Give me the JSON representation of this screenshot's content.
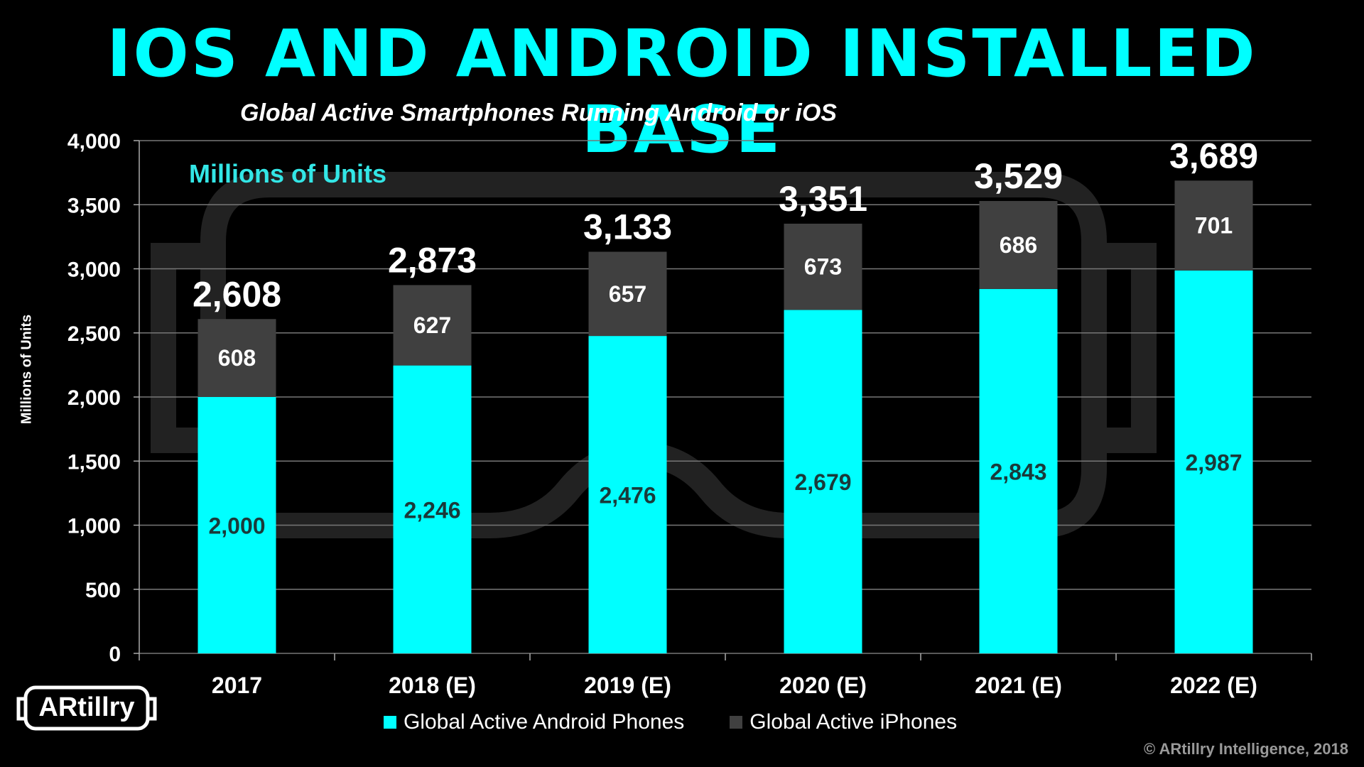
{
  "title": "IOS AND ANDROID INSTALLED BASE",
  "subtitle": "Global Active Smartphones Running Android or iOS",
  "units_note": "Millions of Units",
  "copyright": "© ARtillry Intelligence, 2018",
  "logo_text": "ARtillry",
  "colors": {
    "android": "#00ffff",
    "iphone": "#404040",
    "grid": "#777777",
    "accent": "#00ffff"
  },
  "chart_data": {
    "type": "bar",
    "stacked": true,
    "categories": [
      "2017",
      "2018 (E)",
      "2019 (E)",
      "2020 (E)",
      "2021 (E)",
      "2022 (E)"
    ],
    "series": [
      {
        "name": "Global Active Android Phones",
        "values": [
          2000,
          2246,
          2476,
          2679,
          2843,
          2987
        ]
      },
      {
        "name": "Global Active iPhones",
        "values": [
          608,
          627,
          657,
          673,
          686,
          701
        ]
      }
    ],
    "totals": [
      2608,
      2873,
      3133,
      3351,
      3529,
      3689
    ],
    "segment_labels": [
      [
        "2,000",
        "2,246",
        "2,476",
        "2,679",
        "2,843",
        "2,987"
      ],
      [
        "608",
        "627",
        "657",
        "673",
        "686",
        "701"
      ]
    ],
    "total_labels": [
      "2,608",
      "2,873",
      "3,133",
      "3,351",
      "3,529",
      "3,689"
    ],
    "ytick_labels": [
      "0",
      "500",
      "1,000",
      "1,500",
      "2,000",
      "2,500",
      "3,000",
      "3,500",
      "4,000"
    ],
    "ylim": [
      0,
      4000
    ],
    "yticks": [
      0,
      500,
      1000,
      1500,
      2000,
      2500,
      3000,
      3500,
      4000
    ],
    "ylabel": "Millions of Units",
    "xlabel": "",
    "grid": true,
    "legend_position": "bottom"
  }
}
